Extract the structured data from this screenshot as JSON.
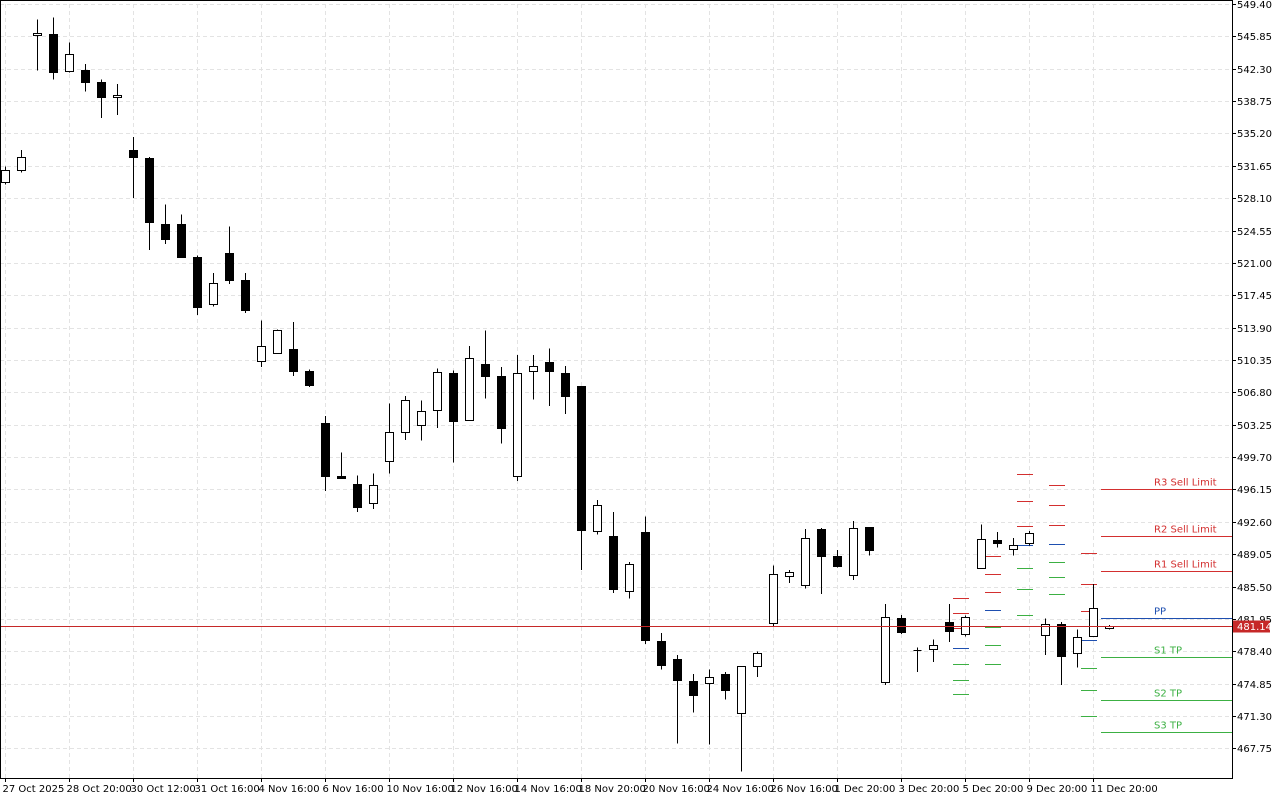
{
  "chart_data": {
    "type": "candlestick",
    "ylim": [
      464.5,
      549.4
    ],
    "y_ticks": [
      "549.40",
      "545.85",
      "542.30",
      "538.75",
      "535.20",
      "531.65",
      "528.10",
      "524.55",
      "521.00",
      "517.45",
      "513.90",
      "510.35",
      "506.80",
      "503.25",
      "499.70",
      "496.15",
      "492.60",
      "489.05",
      "485.50",
      "481.95",
      "478.40",
      "474.85",
      "471.30",
      "467.75"
    ],
    "x_labels": [
      {
        "i": 0,
        "label": "27 Oct 2025"
      },
      {
        "i": 4,
        "label": "28 Oct 20:00"
      },
      {
        "i": 8,
        "label": "30 Oct 12:00"
      },
      {
        "i": 12,
        "label": "31 Oct 16:00"
      },
      {
        "i": 16,
        "label": "4 Nov 16:00"
      },
      {
        "i": 20,
        "label": "6 Nov 16:00"
      },
      {
        "i": 24,
        "label": "10 Nov 16:00"
      },
      {
        "i": 28,
        "label": "12 Nov 16:00"
      },
      {
        "i": 32,
        "label": "14 Nov 16:00"
      },
      {
        "i": 36,
        "label": "18 Nov 20:00"
      },
      {
        "i": 40,
        "label": "20 Nov 16:00"
      },
      {
        "i": 44,
        "label": "24 Nov 16:00"
      },
      {
        "i": 48,
        "label": "26 Nov 16:00"
      },
      {
        "i": 52,
        "label": "1 Dec 20:00"
      },
      {
        "i": 56,
        "label": "3 Dec 20:00"
      },
      {
        "i": 60,
        "label": "5 Dec 20:00"
      },
      {
        "i": 64,
        "label": "9 Dec 20:00"
      },
      {
        "i": 68,
        "label": "11 Dec 20:00"
      }
    ],
    "x_count": 72,
    "candles": [
      {
        "o": 529.9,
        "h": 531.6,
        "l": 529.6,
        "c": 531.2
      },
      {
        "o": 531.2,
        "h": 533.4,
        "l": 530.9,
        "c": 532.6
      },
      {
        "o": 546.0,
        "h": 547.7,
        "l": 542.1,
        "c": 546.2
      },
      {
        "o": 546.1,
        "h": 547.9,
        "l": 541.1,
        "c": 541.9
      },
      {
        "o": 542.1,
        "h": 545.2,
        "l": 541.9,
        "c": 543.9
      },
      {
        "o": 542.2,
        "h": 542.8,
        "l": 539.8,
        "c": 540.8
      },
      {
        "o": 540.8,
        "h": 541.1,
        "l": 536.9,
        "c": 539.2
      },
      {
        "o": 539.2,
        "h": 540.6,
        "l": 537.2,
        "c": 539.4
      },
      {
        "o": 533.4,
        "h": 534.8,
        "l": 528.1,
        "c": 532.6
      },
      {
        "o": 532.5,
        "h": 532.6,
        "l": 522.4,
        "c": 525.5
      },
      {
        "o": 525.3,
        "h": 527.4,
        "l": 523.1,
        "c": 523.6
      },
      {
        "o": 525.3,
        "h": 526.3,
        "l": 521.8,
        "c": 521.6
      },
      {
        "o": 521.6,
        "h": 521.8,
        "l": 515.3,
        "c": 516.2
      },
      {
        "o": 516.5,
        "h": 519.9,
        "l": 516.2,
        "c": 518.8
      },
      {
        "o": 522.1,
        "h": 525.0,
        "l": 518.7,
        "c": 519.1
      },
      {
        "o": 519.1,
        "h": 519.9,
        "l": 515.5,
        "c": 515.8
      },
      {
        "o": 510.2,
        "h": 514.7,
        "l": 509.6,
        "c": 511.9
      },
      {
        "o": 511.1,
        "h": 513.7,
        "l": 511.0,
        "c": 513.6
      },
      {
        "o": 511.6,
        "h": 514.5,
        "l": 508.6,
        "c": 509.1
      },
      {
        "o": 509.1,
        "h": 509.3,
        "l": 507.4,
        "c": 507.6
      },
      {
        "o": 503.4,
        "h": 504.2,
        "l": 496.0,
        "c": 497.6
      },
      {
        "o": 497.6,
        "h": 500.2,
        "l": 497.3,
        "c": 497.4
      },
      {
        "o": 496.8,
        "h": 497.7,
        "l": 493.7,
        "c": 494.2
      },
      {
        "o": 494.7,
        "h": 497.9,
        "l": 494.0,
        "c": 496.6
      },
      {
        "o": 499.3,
        "h": 505.6,
        "l": 497.9,
        "c": 502.4
      },
      {
        "o": 502.4,
        "h": 506.4,
        "l": 501.6,
        "c": 506.0
      },
      {
        "o": 503.2,
        "h": 505.9,
        "l": 501.5,
        "c": 504.8
      },
      {
        "o": 504.9,
        "h": 509.4,
        "l": 502.9,
        "c": 509.0
      },
      {
        "o": 508.9,
        "h": 509.2,
        "l": 499.1,
        "c": 503.7
      },
      {
        "o": 503.8,
        "h": 511.9,
        "l": 503.7,
        "c": 510.6
      },
      {
        "o": 509.9,
        "h": 513.6,
        "l": 506.1,
        "c": 508.6
      },
      {
        "o": 508.6,
        "h": 509.6,
        "l": 501.2,
        "c": 502.9
      },
      {
        "o": 497.6,
        "h": 510.9,
        "l": 497.1,
        "c": 508.9
      },
      {
        "o": 509.1,
        "h": 510.9,
        "l": 506.0,
        "c": 509.7
      },
      {
        "o": 510.1,
        "h": 511.6,
        "l": 505.3,
        "c": 509.1
      },
      {
        "o": 508.9,
        "h": 509.7,
        "l": 504.4,
        "c": 506.4
      },
      {
        "o": 507.5,
        "h": 507.5,
        "l": 487.3,
        "c": 491.7
      },
      {
        "o": 491.6,
        "h": 495.0,
        "l": 491.2,
        "c": 494.5
      },
      {
        "o": 491.0,
        "h": 493.7,
        "l": 484.8,
        "c": 485.2
      },
      {
        "o": 485.0,
        "h": 488.2,
        "l": 484.2,
        "c": 488.0
      },
      {
        "o": 491.5,
        "h": 493.2,
        "l": 479.2,
        "c": 479.6
      },
      {
        "o": 479.5,
        "h": 480.4,
        "l": 476.4,
        "c": 476.9
      },
      {
        "o": 477.5,
        "h": 478.0,
        "l": 468.3,
        "c": 475.2
      },
      {
        "o": 475.1,
        "h": 475.9,
        "l": 471.7,
        "c": 473.6
      },
      {
        "o": 474.9,
        "h": 476.4,
        "l": 468.2,
        "c": 475.6
      },
      {
        "o": 475.9,
        "h": 476.1,
        "l": 473.1,
        "c": 474.2
      },
      {
        "o": 471.6,
        "h": 476.8,
        "l": 465.2,
        "c": 476.8
      },
      {
        "o": 476.8,
        "h": 478.4,
        "l": 475.6,
        "c": 478.2
      },
      {
        "o": 481.5,
        "h": 487.8,
        "l": 481.1,
        "c": 486.9
      },
      {
        "o": 486.7,
        "h": 487.3,
        "l": 485.9,
        "c": 487.1
      },
      {
        "o": 485.7,
        "h": 491.8,
        "l": 485.3,
        "c": 490.8
      },
      {
        "o": 491.8,
        "h": 491.9,
        "l": 484.7,
        "c": 488.9
      },
      {
        "o": 488.9,
        "h": 489.5,
        "l": 487.6,
        "c": 487.7
      },
      {
        "o": 486.8,
        "h": 492.7,
        "l": 486.2,
        "c": 491.9
      },
      {
        "o": 492.0,
        "h": 492.0,
        "l": 488.9,
        "c": 489.5
      },
      {
        "o": 475.0,
        "h": 483.6,
        "l": 474.7,
        "c": 482.2
      },
      {
        "o": 482.1,
        "h": 482.4,
        "l": 480.3,
        "c": 480.5
      },
      {
        "o": 478.5,
        "h": 478.8,
        "l": 476.1,
        "c": 478.4
      },
      {
        "o": 478.7,
        "h": 479.7,
        "l": 477.2,
        "c": 479.1
      },
      {
        "o": 481.6,
        "h": 483.6,
        "l": 479.4,
        "c": 480.6
      },
      {
        "o": 480.3,
        "h": 482.3,
        "l": 480.0,
        "c": 482.2
      },
      {
        "o": 487.5,
        "h": 492.3,
        "l": 487.4,
        "c": 490.7
      },
      {
        "o": 490.6,
        "h": 491.5,
        "l": 489.8,
        "c": 490.3
      },
      {
        "o": 489.6,
        "h": 490.8,
        "l": 488.9,
        "c": 490.1
      },
      {
        "o": 490.3,
        "h": 491.6,
        "l": 490.0,
        "c": 491.4
      },
      {
        "o": 480.2,
        "h": 482.0,
        "l": 478.0,
        "c": 481.4
      },
      {
        "o": 481.4,
        "h": 481.6,
        "l": 474.7,
        "c": 477.9
      },
      {
        "o": 478.2,
        "h": 480.8,
        "l": 476.6,
        "c": 480.0
      },
      {
        "o": 480.1,
        "h": 485.8,
        "l": 480.0,
        "c": 483.1
      },
      {
        "o": 481.0,
        "h": 481.3,
        "l": 480.8,
        "c": 481.14
      }
    ],
    "current_price": {
      "value": 481.14,
      "label": "481.14",
      "color": "#c62828"
    },
    "pivot_levels": [
      {
        "label": "R3 Sell Limit",
        "value": 496.15,
        "color": "#d32f2f"
      },
      {
        "label": "R2 Sell Limit",
        "value": 491.0,
        "color": "#d32f2f"
      },
      {
        "label": "R1 Sell Limit",
        "value": 487.2,
        "color": "#d32f2f"
      },
      {
        "label": "PP",
        "value": 482.1,
        "color": "#1e4fb0"
      },
      {
        "label": "S1 TP",
        "value": 477.8,
        "color": "#3cb043"
      },
      {
        "label": "S2 TP",
        "value": 473.1,
        "color": "#3cb043"
      },
      {
        "label": "S3 TP",
        "value": 469.6,
        "color": "#3cb043"
      }
    ],
    "historical_pivots": [
      {
        "i": 59,
        "levels": [
          484.2,
          482.6,
          480.9,
          478.8,
          477.0,
          475.3,
          473.7
        ]
      },
      {
        "i": 61,
        "levels": [
          488.8,
          486.9,
          484.9,
          482.9,
          481.1,
          479.1,
          477.0
        ]
      },
      {
        "i": 63,
        "levels": [
          497.8,
          494.9,
          492.1,
          490.1,
          487.5,
          485.2,
          482.4
        ]
      },
      {
        "i": 65,
        "levels": [
          496.6,
          494.4,
          492.2,
          490.2,
          488.2,
          486.5,
          484.7
        ]
      },
      {
        "i": 67,
        "levels": [
          489.2,
          485.8,
          482.8,
          479.6,
          476.6,
          474.2,
          471.3
        ]
      }
    ],
    "grid": true,
    "colors": {
      "bull_fill": "#ffffff",
      "bear_fill": "#000000",
      "outline": "#000000",
      "grid": "#e3e3e3"
    }
  }
}
